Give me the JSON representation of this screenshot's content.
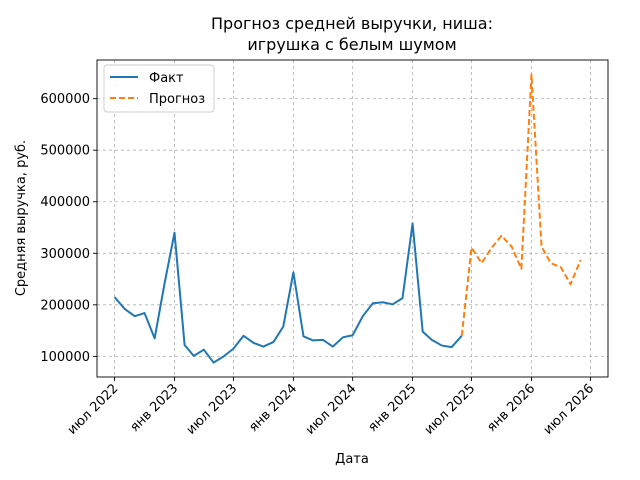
{
  "chart_data": {
    "type": "line",
    "title_lines": [
      "Прогноз средней выручки, ниша:",
      "игрушка с белым шумом"
    ],
    "xlabel": "Дата",
    "ylabel": "Средняя выручка, руб.",
    "x_ticks": [
      "2022-07-01",
      "2023-01-01",
      "2023-07-01",
      "2024-01-01",
      "2024-07-01",
      "2025-01-01",
      "2025-07-01",
      "2026-01-01",
      "2026-07-01"
    ],
    "x_tick_labels": [
      "июл 2022",
      "янв 2023",
      "июл 2023",
      "янв 2024",
      "июл 2024",
      "янв 2025",
      "июл 2025",
      "янв 2026",
      "июл 2026"
    ],
    "y_ticks": [
      100000,
      200000,
      300000,
      400000,
      500000,
      600000
    ],
    "y_tick_labels": [
      "100000",
      "200000",
      "300000",
      "400000",
      "500000",
      "600000"
    ],
    "xlim": [
      "2022-05-08",
      "2026-08-24"
    ],
    "ylim": [
      60000,
      675000
    ],
    "grid": true,
    "legend_position": "top-left",
    "series": [
      {
        "name": "Факт",
        "color": "#1f77b4",
        "style": "solid",
        "x": [
          "2022-07-01",
          "2022-08-01",
          "2022-09-01",
          "2022-10-01",
          "2022-11-01",
          "2022-12-01",
          "2023-01-01",
          "2023-02-01",
          "2023-03-01",
          "2023-04-01",
          "2023-05-01",
          "2023-06-01",
          "2023-07-01",
          "2023-08-01",
          "2023-09-01",
          "2023-10-01",
          "2023-11-01",
          "2023-12-01",
          "2024-01-01",
          "2024-02-01",
          "2024-03-01",
          "2024-04-01",
          "2024-05-01",
          "2024-06-01",
          "2024-07-01",
          "2024-08-01",
          "2024-09-01",
          "2024-10-01",
          "2024-11-01",
          "2024-12-01",
          "2025-01-01",
          "2025-02-01",
          "2025-03-01",
          "2025-04-01",
          "2025-05-01",
          "2025-06-01"
        ],
        "y": [
          215000,
          192000,
          178000,
          184000,
          135000,
          240000,
          340000,
          122000,
          101000,
          113000,
          88000,
          100000,
          115000,
          140000,
          126000,
          119000,
          128000,
          158000,
          263000,
          139000,
          131000,
          132000,
          119000,
          137000,
          141000,
          178000,
          203000,
          205000,
          201000,
          213000,
          358000,
          148000,
          132000,
          121000,
          118000,
          140000
        ]
      },
      {
        "name": "Прогноз",
        "color": "#ff7f0e",
        "style": "dashed",
        "x": [
          "2025-06-01",
          "2025-07-01",
          "2025-08-01",
          "2025-09-01",
          "2025-10-01",
          "2025-11-01",
          "2025-12-01",
          "2026-01-01",
          "2026-02-01",
          "2026-03-01",
          "2026-04-01",
          "2026-05-01",
          "2026-06-01"
        ],
        "y": [
          140000,
          311000,
          281000,
          311000,
          334000,
          313000,
          270000,
          647000,
          313000,
          281000,
          273000,
          240000,
          287000
        ]
      }
    ]
  }
}
